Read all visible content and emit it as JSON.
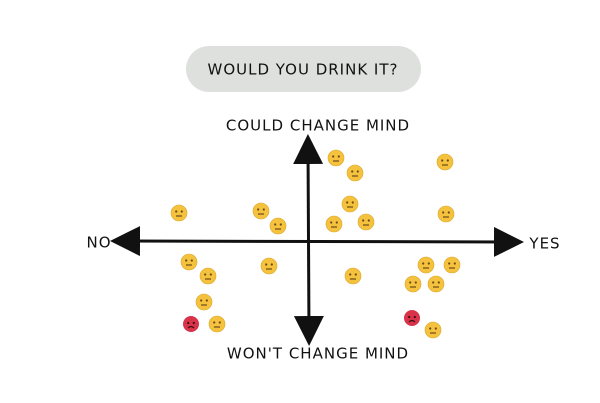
{
  "title": "WOULD YOU DRINK IT?",
  "axes": {
    "top": "COULD CHANGE MIND",
    "bottom": "WON'T CHANGE MIND",
    "left": "NO",
    "right": "YES"
  }
}
